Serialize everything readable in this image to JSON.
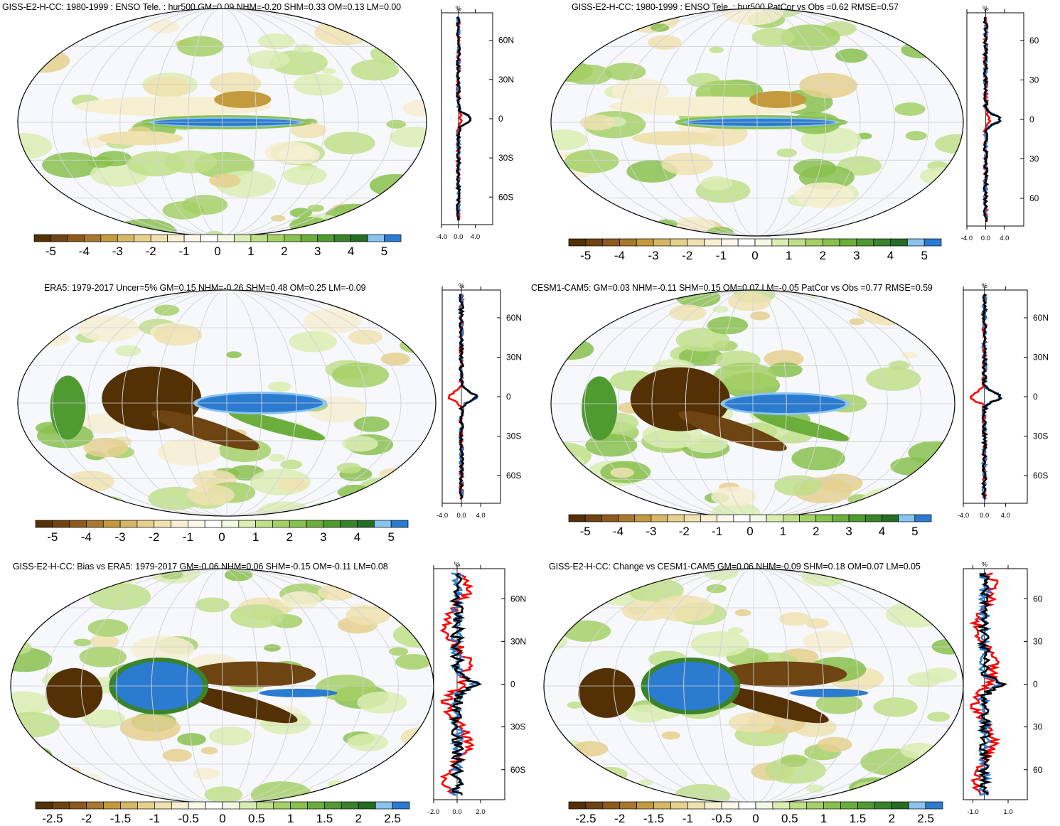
{
  "colors": {
    "blue": "#2b7bd0",
    "light_blue": "#89c3ee",
    "red": "#ff0000",
    "black": "#000000",
    "scale_main": [
      "#543005",
      "#6f4413",
      "#8c5a1d",
      "#a8782e",
      "#c39a3c",
      "#d6b765",
      "#e6d08d",
      "#f0e2b0",
      "#f7efd2",
      "#fbf7ea",
      "#ffffff",
      "#f3f8e6",
      "#dbedb3",
      "#c0df88",
      "#a4d066",
      "#88c14d",
      "#6cae3c",
      "#509a32",
      "#3a832c",
      "#266d24",
      "#89c3ee",
      "#2b7bd0"
    ]
  },
  "panels": [
    {
      "title": "GISS-E2-H-CC: 1980-1999 : ENSO Tele. : hur500 GM=0.09 NHM=-0.20 SHM=0.33 OM=0.13 LM=0.00",
      "colorbar_labels": [
        "-5",
        "-4",
        "-3",
        "-2",
        "-1",
        "0",
        "1",
        "2",
        "3",
        "4",
        "5"
      ],
      "profile_xticks": [
        "-4.0",
        "0.0",
        "4.0"
      ],
      "profile_yticks": [
        "60N",
        "30N",
        "0",
        "30S",
        "60S"
      ],
      "profile_unit": "%"
    },
    {
      "title": "GISS-E2-H-CC: 1980-1999 : ENSO Tele. : hur500 PatCor vs Obs =0.62 RMSE=0.57",
      "colorbar_labels": [
        "-5",
        "-4",
        "-3",
        "-2",
        "-1",
        "0",
        "1",
        "2",
        "3",
        "4",
        "5"
      ],
      "profile_xticks": [
        "-4.0",
        "0.0",
        "4.0"
      ],
      "profile_yticks": [
        "60",
        "30",
        "0",
        "30",
        "60"
      ],
      "profile_unit": "%"
    },
    {
      "title": "ERA5: 1979-2017 Uncer=5% GM=0.15 NHM=-0.26 SHM=0.48 OM=0.25 LM=-0.09",
      "colorbar_labels": [
        "-5",
        "-4",
        "-3",
        "-2",
        "-1",
        "0",
        "1",
        "2",
        "3",
        "4",
        "5"
      ],
      "profile_xticks": [
        "-4.0",
        "0.0",
        "4.0"
      ],
      "profile_yticks": [
        "60N",
        "30N",
        "0",
        "30S",
        "60S"
      ],
      "profile_unit": "%"
    },
    {
      "title": "CESM1-CAM5: GM=0.03 NHM=-0.11 SHM=0.15 OM=0.07 LM=-0.05 PatCor vs Obs =0.77 RMSE=0.59",
      "colorbar_labels": [
        "-5",
        "-4",
        "-3",
        "-2",
        "-1",
        "0",
        "1",
        "2",
        "3",
        "4",
        "5"
      ],
      "profile_xticks": [
        "-4.0",
        "0.0",
        "4.0"
      ],
      "profile_yticks": [
        "60N",
        "30N",
        "0",
        "30S",
        "60S"
      ],
      "profile_unit": "%"
    },
    {
      "title": "GISS-E2-H-CC: Bias vs ERA5: 1979-2017 GM=-0.06 NHM=0.06 SHM=-0.15 OM=-0.11 LM=0.08",
      "colorbar_labels": [
        "-2.5",
        "-2",
        "-1.5",
        "-1",
        "-0.5",
        "0",
        "0.5",
        "1",
        "1.5",
        "2",
        "2.5"
      ],
      "profile_xticks": [
        "-2.0",
        "0.0",
        "2.0"
      ],
      "profile_yticks": [
        "60N",
        "30N",
        "0",
        "30S",
        "60S"
      ],
      "profile_unit": "%"
    },
    {
      "title": "GISS-E2-H-CC: Change vs CESM1-CAM5 GM=0.06 NHM=-0.09 SHM=0.18 OM=0.07 LM=0.05",
      "colorbar_labels": [
        "-2.5",
        "-2",
        "-1.5",
        "-1",
        "-0.5",
        "0",
        "0.5",
        "1",
        "1.5",
        "2",
        "2.5"
      ],
      "profile_xticks": [
        "-1.0",
        "1.0"
      ],
      "profile_yticks": [
        "60",
        "30",
        "0",
        "30",
        "60"
      ],
      "profile_unit": "%"
    }
  ]
}
